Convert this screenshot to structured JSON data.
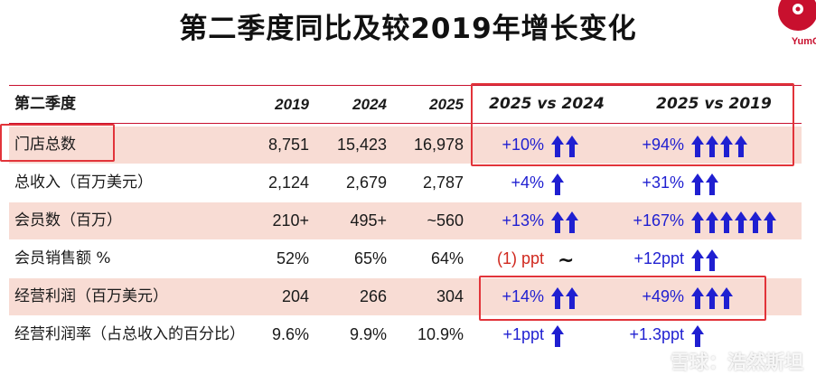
{
  "title": "第二季度同比及较2019年增长变化",
  "logo": {
    "text": "YumC"
  },
  "header": {
    "label": "第二季度",
    "y2019": "2019",
    "y2024": "2024",
    "y2025": "2025",
    "cmp1": "2025 vs 2024",
    "cmp2": "2025 vs 2019"
  },
  "rows": [
    {
      "label": "门店总数",
      "v2019": "8,751",
      "v2024": "15,423",
      "v2025": "16,978",
      "chg1": "+10%",
      "arrows1": 2,
      "chg2": "+94%",
      "arrows2": 4
    },
    {
      "label": "总收入（百万美元）",
      "v2019": "2,124",
      "v2024": "2,679",
      "v2025": "2,787",
      "chg1": "+4%",
      "arrows1": 1,
      "chg2": "+31%",
      "arrows2": 2
    },
    {
      "label": "会员数（百万）",
      "v2019": "210+",
      "v2024": "495+",
      "v2025": "~560",
      "chg1": "+13%",
      "arrows1": 2,
      "chg2": "+167%",
      "arrows2": 6
    },
    {
      "label": "会员销售额 %",
      "v2019": "52%",
      "v2024": "65%",
      "v2025": "64%",
      "chg1": "(1) ppt",
      "arrows1": 0,
      "neutral1": "~",
      "chg2": "+12ppt",
      "arrows2": 2
    },
    {
      "label": "经营利润（百万美元）",
      "v2019": "204",
      "v2024": "266",
      "v2025": "304",
      "chg1": "+14%",
      "arrows1": 2,
      "chg2": "+49%",
      "arrows2": 3
    },
    {
      "label": "经营利润率（占总收入的百分比）",
      "v2019": "9.6%",
      "v2024": "9.9%",
      "v2025": "10.9%",
      "chg1": "+1ppt",
      "arrows1": 1,
      "chg2": "+1.3ppt",
      "arrows2": 1
    }
  ],
  "watermark": "雪球：浩然斯坦",
  "colors": {
    "accent": "#c8102e",
    "shade": "#f8dcd4",
    "arrow": "#1f1fd1",
    "highlight": "#e2343a"
  }
}
